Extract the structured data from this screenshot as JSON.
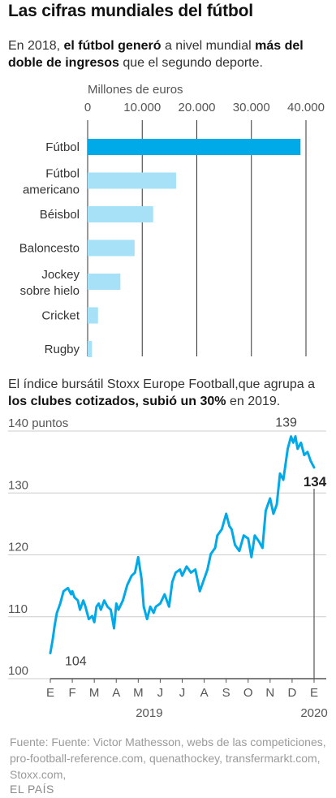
{
  "title": "Las cifras mundiales del fútbol",
  "intro1": {
    "t1": "En 2018, ",
    "b1": "el fútbol generó",
    "t2": " a nivel mundial ",
    "b2": "más del doble de ingresos",
    "t3": " que el segundo deporte."
  },
  "intro2": {
    "t1": "El índice bursátil Stoxx Europe Football,que agrupa a ",
    "b1": "los clubes cotizados, subió un 30%",
    "t2": " en 2019."
  },
  "chart_data": [
    {
      "type": "bar",
      "orientation": "horizontal",
      "unit_label": "Millones de euros",
      "categories": [
        "Fútbol",
        "Fútbol americano",
        "Béisbol",
        "Baloncesto",
        "Jockey sobre hielo",
        "Cricket",
        "Rugby"
      ],
      "values": [
        39000,
        16200,
        12000,
        8600,
        6000,
        1900,
        800
      ],
      "highlight_index": 0,
      "xticks": [
        0,
        10000,
        20000,
        30000,
        40000
      ],
      "xtick_labels": [
        "0",
        "10.000",
        "20.000",
        "30.000",
        "40.000"
      ],
      "xlim": [
        0,
        40000
      ],
      "grid": true,
      "colors": {
        "highlight": "#00a9e8",
        "bar": "#a6e1f7",
        "grid": "#333333"
      }
    },
    {
      "type": "line",
      "ylabel": "puntos",
      "ylim": [
        100,
        140
      ],
      "yticks": [
        100,
        110,
        120,
        130,
        140
      ],
      "ytick_labels": [
        "100",
        "110",
        "120",
        "130",
        "140 puntos"
      ],
      "xtick_labels": [
        "E",
        "F",
        "M",
        "A",
        "M",
        "J",
        "J",
        "A",
        "S",
        "O",
        "N",
        "D",
        "E"
      ],
      "year_labels": [
        {
          "label": "2019",
          "at": 4.5
        },
        {
          "label": "2020",
          "at": 12
        }
      ],
      "x_unit": "months since Jan 2019",
      "x": [
        0,
        0.1,
        0.2,
        0.3,
        0.45,
        0.6,
        0.8,
        0.95,
        1.0,
        1.1,
        1.25,
        1.35,
        1.5,
        1.6,
        1.75,
        1.9,
        2.0,
        2.1,
        2.2,
        2.3,
        2.45,
        2.6,
        2.75,
        2.9,
        3.0,
        3.1,
        3.3,
        3.5,
        3.7,
        3.85,
        4.0,
        4.15,
        4.25,
        4.4,
        4.55,
        4.7,
        4.8,
        5.0,
        5.2,
        5.4,
        5.55,
        5.7,
        5.9,
        6.0,
        6.2,
        6.4,
        6.6,
        6.8,
        7.0,
        7.15,
        7.3,
        7.5,
        7.6,
        7.8,
        8.0,
        8.15,
        8.25,
        8.4,
        8.6,
        8.8,
        9.0,
        9.15,
        9.3,
        9.5,
        9.65,
        9.8,
        10.0,
        10.15,
        10.3,
        10.45,
        10.6,
        10.8,
        10.95,
        11.05,
        11.15,
        11.25,
        11.4,
        11.55,
        11.7,
        11.85,
        12.0
      ],
      "values": [
        104,
        106,
        108.5,
        110.5,
        112,
        114,
        114.5,
        113.5,
        114,
        113,
        112.5,
        111,
        112.5,
        111.5,
        109.5,
        110,
        109,
        111.5,
        112,
        111,
        112.5,
        111.5,
        111,
        108,
        112,
        111,
        112.5,
        115,
        116.5,
        117,
        119.5,
        116,
        111.5,
        109.5,
        111.5,
        110.5,
        111.5,
        112,
        113.5,
        111.5,
        115.5,
        117,
        117.5,
        116.5,
        118,
        117,
        117.5,
        114,
        116,
        117.5,
        120,
        121,
        123,
        124,
        126.5,
        124.5,
        124,
        121.5,
        120.5,
        123,
        122.5,
        119.5,
        123,
        122,
        121,
        127,
        129,
        126.5,
        128,
        133,
        132,
        137,
        139,
        138,
        139,
        137,
        138,
        136,
        136.5,
        135,
        134
      ],
      "annotations": [
        {
          "label": "104",
          "bold": false
        },
        {
          "label": "139",
          "bold": false
        },
        {
          "label": "134",
          "bold": true
        }
      ],
      "colors": {
        "line": "#00a9e8",
        "grid": "#cccccc"
      }
    }
  ],
  "source": "Fuente: Fuente: Victor Mathesson, webs de las competiciones, pro-football-reference.com, quenathockey, transfermarkt.com, Stoxx.com,",
  "logo": "EL PAÍS"
}
